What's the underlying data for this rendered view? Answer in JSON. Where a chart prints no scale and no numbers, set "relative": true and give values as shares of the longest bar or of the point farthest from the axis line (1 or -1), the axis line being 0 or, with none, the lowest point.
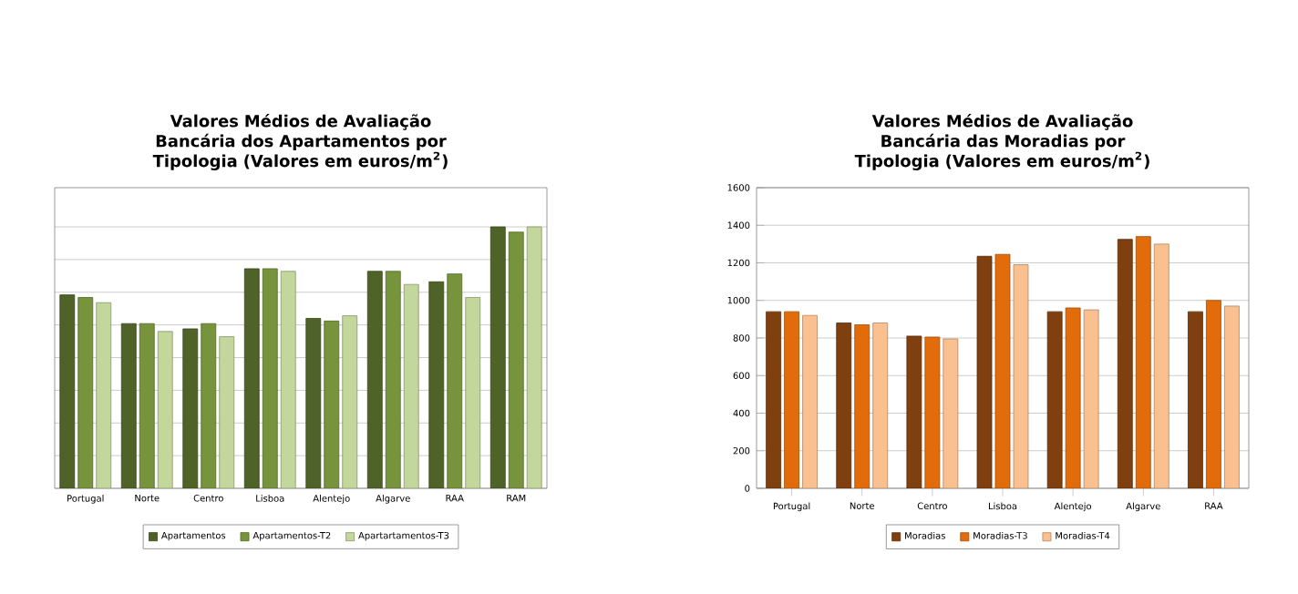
{
  "chart_data": [
    {
      "type": "bar",
      "title": "Valores Médios de Avaliação Bancária dos Apartamentos por Tipologia (Valores em euros/m$^{2}$)",
      "categories": [
        "Portugal",
        "Norte",
        "Centro",
        "Lisboa",
        "Alentejo",
        "Algarve",
        "RAA",
        "RAM"
      ],
      "relative": true,
      "grid": "y",
      "legend": "bottom",
      "series": [
        {
          "name": "Apartamentos",
          "color": "#4f6228",
          "values": [
            0.74,
            0.63,
            0.61,
            0.84,
            0.65,
            0.83,
            0.79,
            1.0
          ]
        },
        {
          "name": "Apartamentos-T2",
          "color": "#77933c",
          "values": [
            0.73,
            0.63,
            0.63,
            0.84,
            0.64,
            0.83,
            0.82,
            0.98
          ]
        },
        {
          "name": "Apartartamentos-T3",
          "color": "#c3d69b",
          "values": [
            0.71,
            0.6,
            0.58,
            0.83,
            0.66,
            0.78,
            0.73,
            1.0
          ]
        }
      ]
    },
    {
      "type": "bar",
      "title": "Valores Médios de Avaliação Bancária das Moradias por Tipologia (Valores em euros/m$^{2}$)",
      "categories": [
        "Portugal",
        "Norte",
        "Centro",
        "Lisboa",
        "Alentejo",
        "Algarve",
        "RAA"
      ],
      "ylim": [
        0,
        1600
      ],
      "yticks": [
        0,
        200,
        400,
        600,
        800,
        1000,
        1200,
        1400,
        1600
      ],
      "grid": "y",
      "legend": "bottom",
      "series": [
        {
          "name": "Moradias",
          "color": "#7f3f0f",
          "values": [
            940,
            880,
            810,
            1235,
            940,
            1325,
            940
          ]
        },
        {
          "name": "Moradias-T3",
          "color": "#e36c0a",
          "values": [
            940,
            870,
            805,
            1245,
            960,
            1340,
            1000
          ]
        },
        {
          "name": "Moradias-T4",
          "color": "#fac090",
          "values": [
            920,
            880,
            795,
            1190,
            950,
            1300,
            970
          ]
        }
      ]
    }
  ]
}
